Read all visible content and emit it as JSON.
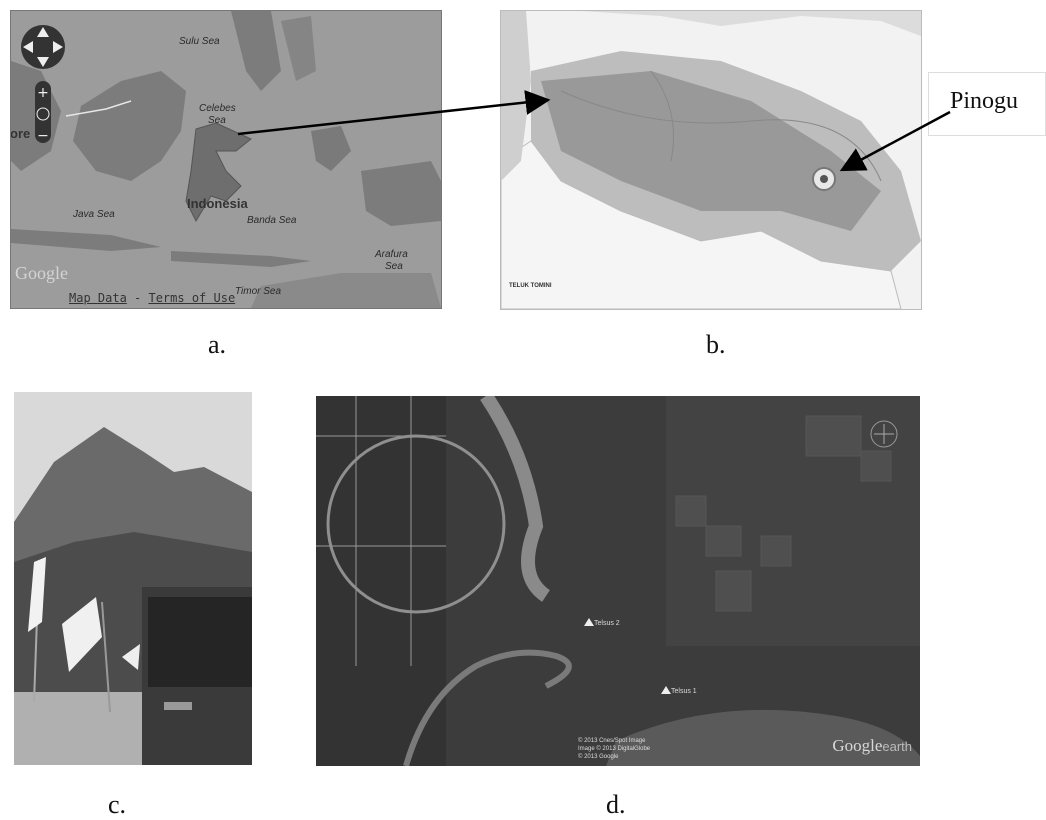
{
  "panel_a": {
    "labels": {
      "sulu_sea": "Sulu Sea",
      "celebes_sea_1": "Celebes",
      "celebes_sea_2": "Sea",
      "indonesia": "Indonesia",
      "banda_sea": "Banda Sea",
      "java_sea": "Java Sea",
      "arafura_1": "Arafura",
      "arafura_2": "Sea",
      "timor_sea": "Timor Sea",
      "ore": "ore"
    },
    "google_logo": "Google",
    "footer_map_data": "Map Data",
    "footer_sep": " - ",
    "footer_terms": "Terms of Use",
    "caption": "a."
  },
  "panel_b": {
    "callout_label": "Pinogu",
    "map_text": "TELUK TOMINI",
    "caption": "b."
  },
  "panel_c": {
    "caption": "c."
  },
  "panel_d": {
    "marker_1": "Telsus 2",
    "marker_2": "Telsus 1",
    "copyright_1": "© 2013 Cnes/Spot Image",
    "copyright_2": "Image © 2013 DigitalGlobe",
    "copyright_3": "© 2013 Google",
    "google_earth_1": "Google",
    "google_earth_2": "earth",
    "caption": "d."
  },
  "colors": {
    "sea": "#9e9e9e",
    "land": "#7a7a7a",
    "satellite": "#3a3a3a"
  }
}
